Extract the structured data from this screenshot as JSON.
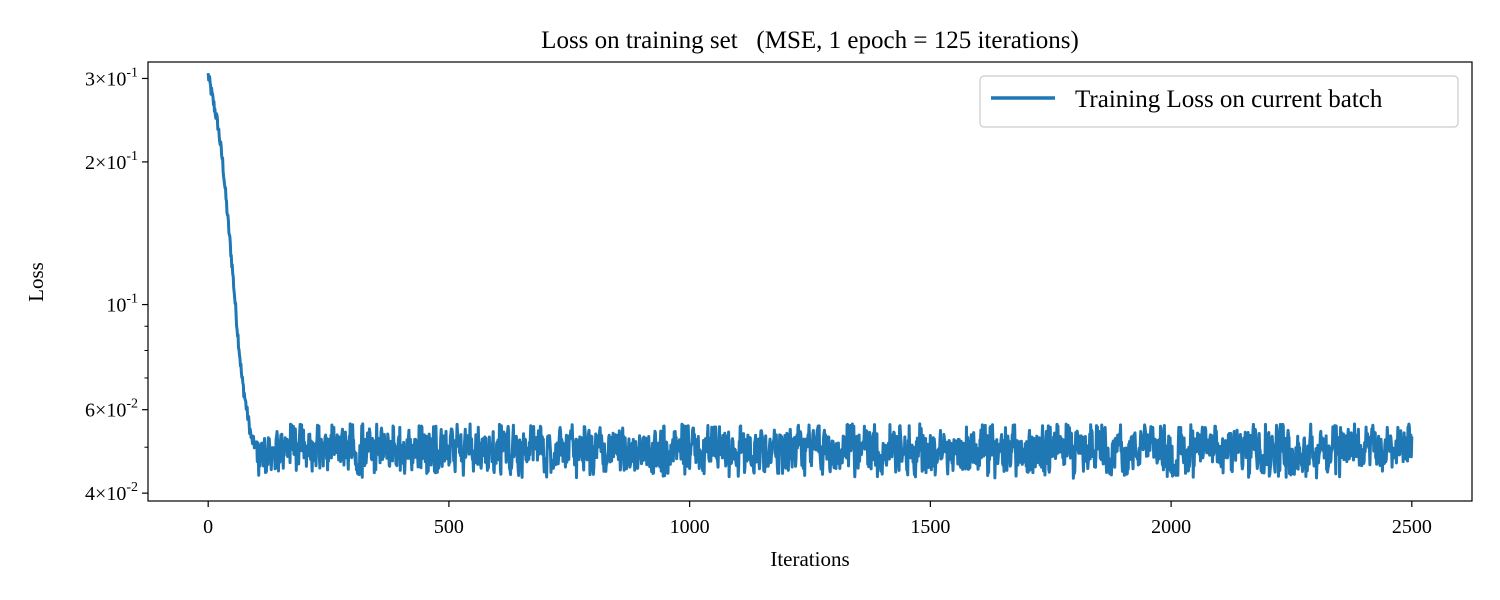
{
  "chart_data": {
    "type": "line",
    "title": "Loss on training set   (MSE, 1 epoch = 125 iterations)",
    "xlabel": "Iterations",
    "ylabel": "Loss",
    "yscale": "log",
    "xlim": [
      -125,
      2625
    ],
    "ylim": [
      0.0385,
      0.325
    ],
    "xticks": [
      0,
      500,
      1000,
      1500,
      2000,
      2500
    ],
    "xtick_labels": [
      "0",
      "500",
      "1000",
      "1500",
      "2000",
      "2500"
    ],
    "yticks": [
      {
        "value": 0.3,
        "mantissa": "3",
        "base": "10",
        "exponent": "-1"
      },
      {
        "value": 0.2,
        "mantissa": "2",
        "base": "10",
        "exponent": "-1"
      },
      {
        "value": 0.1,
        "mantissa": "",
        "base": "10",
        "exponent": "-1"
      },
      {
        "value": 0.06,
        "mantissa": "6",
        "base": "10",
        "exponent": "-2"
      },
      {
        "value": 0.04,
        "mantissa": "4",
        "base": "10",
        "exponent": "-2"
      }
    ],
    "minor_yticks": [
      0.09,
      0.08,
      0.07,
      0.05
    ],
    "legend": {
      "location": "upper right",
      "entries": [
        "Training Loss on current batch"
      ]
    },
    "grid": false,
    "series": [
      {
        "name": "Training Loss on current batch",
        "color": "#1f77b4",
        "x_range": [
          0,
          2500
        ],
        "total_points": 2501,
        "phases": [
          {
            "from_iteration": 0,
            "to_iteration": 100,
            "description": "steep descent",
            "anchor_points": [
              [
                0,
                0.305
              ],
              [
                10,
                0.27
              ],
              [
                20,
                0.24
              ],
              [
                30,
                0.2
              ],
              [
                40,
                0.155
              ],
              [
                50,
                0.12
              ],
              [
                60,
                0.09
              ],
              [
                70,
                0.07
              ],
              [
                80,
                0.06
              ],
              [
                90,
                0.052
              ],
              [
                100,
                0.05
              ]
            ]
          },
          {
            "from_iteration": 100,
            "to_iteration": 2500,
            "description": "noisy plateau",
            "mean": 0.05,
            "min": 0.043,
            "max": 0.056
          }
        ]
      }
    ]
  }
}
